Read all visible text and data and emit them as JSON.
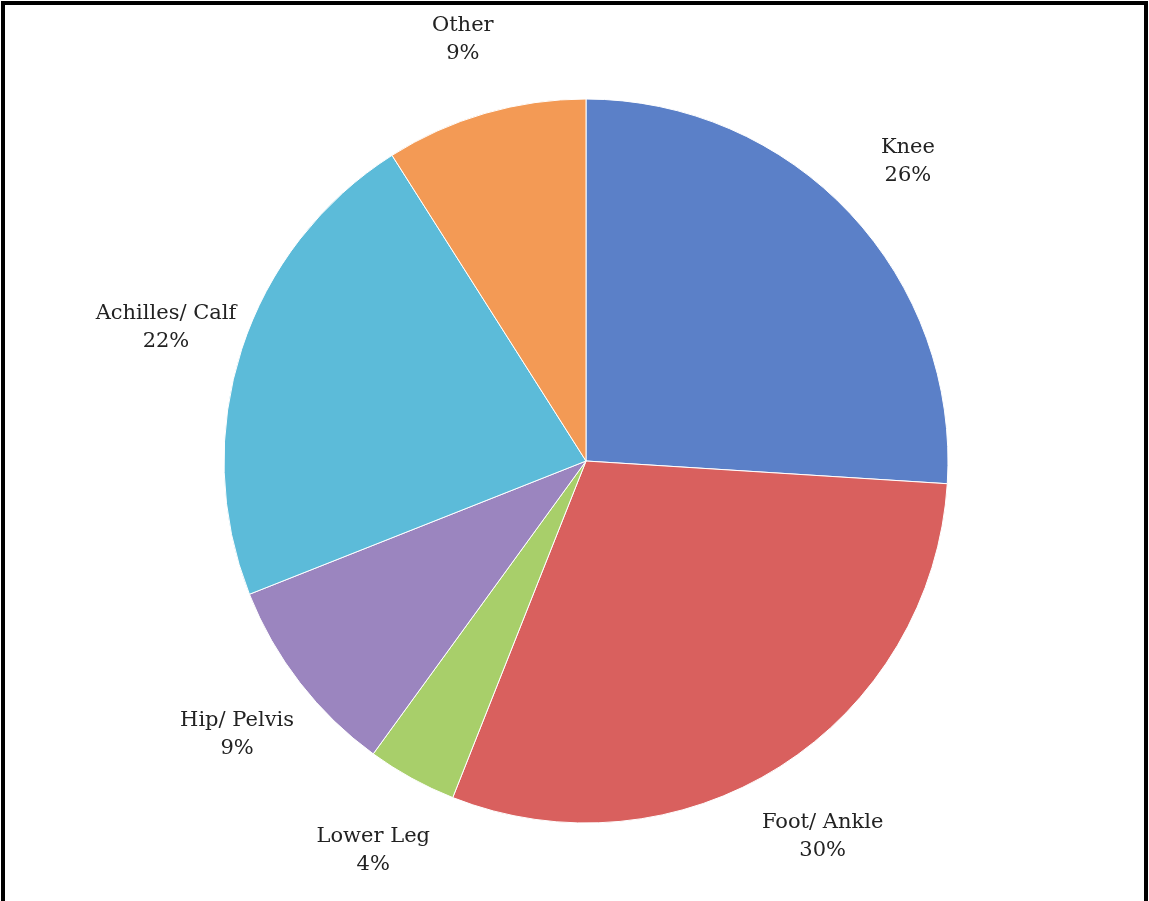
{
  "chart_data": {
    "type": "pie",
    "categories": [
      "Knee",
      "Foot/ Ankle",
      "Lower Leg",
      "Hip/ Pelvis",
      "Achilles/ Calf",
      "Other"
    ],
    "values": [
      26,
      30,
      4,
      9,
      22,
      9
    ],
    "value_labels": [
      "26%",
      "30%",
      "4%",
      "9%",
      "22%",
      "9%"
    ],
    "colors": [
      "#5b80c8",
      "#d9605e",
      "#a8cf6a",
      "#9b85bf",
      "#5cbbd9",
      "#f39a55"
    ]
  }
}
